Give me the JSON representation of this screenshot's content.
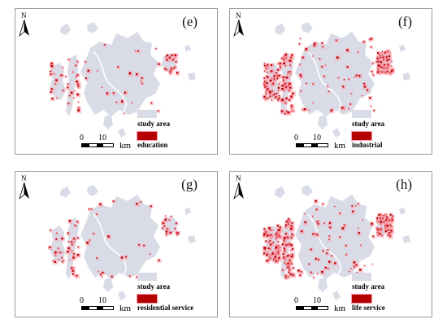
{
  "panels": [
    {
      "id": "e",
      "label": "(e)",
      "legend_study": "study area",
      "legend_feature": "education",
      "density": 0.18,
      "feature_color": "#b40000"
    },
    {
      "id": "f",
      "label": "(f)",
      "legend_study": "study area",
      "legend_feature": "industrial",
      "density": 0.85,
      "feature_color": "#b40000"
    },
    {
      "id": "g",
      "label": "(g)",
      "legend_study": "study area",
      "legend_feature": "residential service",
      "density": 0.2,
      "feature_color": "#b40000"
    },
    {
      "id": "h",
      "label": "(h)",
      "legend_study": "study area",
      "legend_feature": "life service",
      "density": 1.0,
      "feature_color": "#b40000"
    }
  ],
  "north_label": "N",
  "scale": {
    "tick_0": "0",
    "tick_10": "10",
    "unit": "km"
  },
  "colors": {
    "study_area": "#d9dbe6",
    "feature": "#b40000",
    "feature_halo": "#ff9aa8",
    "border": "#9a9a9a"
  }
}
